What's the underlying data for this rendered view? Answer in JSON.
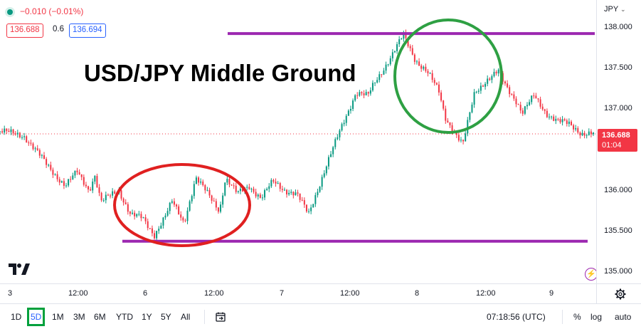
{
  "legend": {
    "change": "−0.010 (−0.01%)",
    "bid": "136.688",
    "spread": "0.6",
    "ask": "136.694"
  },
  "price_axis": {
    "currency": "JPY",
    "ticks": [
      "138.000",
      "137.500",
      "137.000",
      "136.000",
      "135.500",
      "135.000"
    ],
    "last_price": "136.688",
    "countdown": "01:04"
  },
  "time_axis": {
    "labels": [
      "3",
      "12:00",
      "6",
      "12:00",
      "7",
      "12:00",
      "8",
      "12:00",
      "9"
    ]
  },
  "annotation": {
    "title": "USD/JPY Middle Ground"
  },
  "toolbar": {
    "ranges": [
      "1D",
      "5D",
      "1M",
      "3M",
      "6M",
      "YTD",
      "1Y",
      "5Y",
      "All"
    ],
    "active_range": "5D",
    "clock": "07:18:56 (UTC)",
    "percent_label": "%",
    "log_label": "log",
    "auto_label": "auto"
  },
  "colors": {
    "up": "#089981",
    "down": "#f23645",
    "support_resistance": "#9c27b0",
    "circle_high": "#2ea043",
    "circle_low": "#e02020"
  },
  "chart_data": {
    "type": "line",
    "title": "USD/JPY Middle Ground",
    "ylim": [
      134.9,
      138.3
    ],
    "x": [
      0,
      0.04,
      0.08,
      0.11,
      0.13,
      0.15,
      0.16,
      0.17,
      0.2,
      0.22,
      0.24,
      0.26,
      0.28,
      0.29,
      0.31,
      0.33,
      0.35,
      0.37,
      0.38,
      0.4,
      0.42,
      0.44,
      0.46,
      0.48,
      0.5,
      0.52,
      0.54,
      0.55,
      0.58,
      0.6,
      0.62,
      0.63,
      0.66,
      0.68,
      0.7,
      0.72,
      0.74,
      0.75,
      0.78,
      0.8,
      0.82,
      0.84,
      0.85,
      0.87,
      0.88,
      0.9,
      0.92,
      0.94,
      0.96,
      0.98,
      1.0
    ],
    "series": [
      {
        "values": [
          136.72,
          136.67,
          136.3,
          136.05,
          136.22,
          136.0,
          136.18,
          135.85,
          136.0,
          135.7,
          135.65,
          135.45,
          135.7,
          135.85,
          135.6,
          136.15,
          135.95,
          135.75,
          136.15,
          135.95,
          136.05,
          135.9,
          136.1,
          136.0,
          135.95,
          135.7,
          136.1,
          136.3,
          136.85,
          137.2,
          137.15,
          137.3,
          137.65,
          137.9,
          137.6,
          137.45,
          137.2,
          136.9,
          136.55,
          137.2,
          137.35,
          137.45,
          137.3,
          137.1,
          136.95,
          137.15,
          136.95,
          136.85,
          136.8,
          136.7,
          136.69
        ]
      }
    ],
    "resistance": 137.92,
    "support": 135.37,
    "last_price": 136.688
  }
}
